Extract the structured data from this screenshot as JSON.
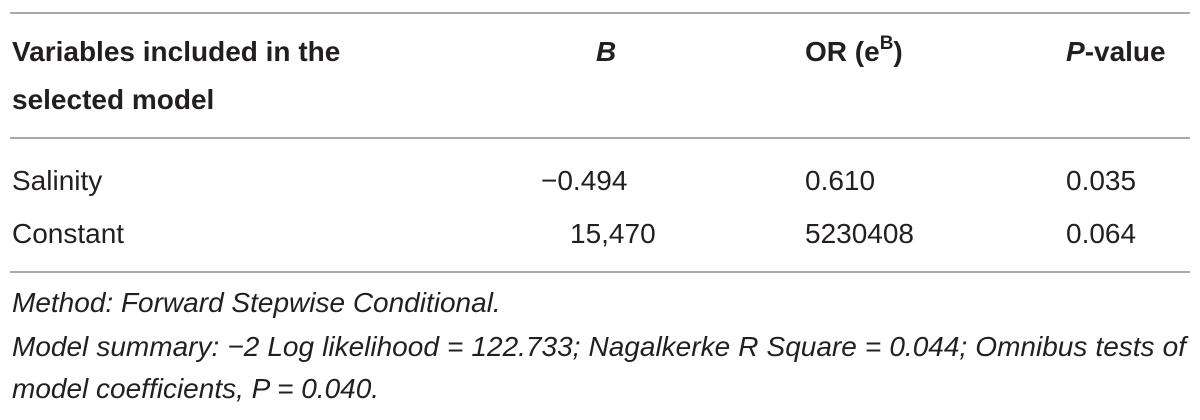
{
  "table": {
    "header": [
      "Variables included in the selected model",
      "B",
      [
        "OR (e",
        "B",
        ")"
      ],
      [
        "P",
        "-value"
      ]
    ],
    "rows": [
      [
        "Salinity",
        "−0.494",
        "0.610",
        "0.035"
      ],
      [
        "Constant",
        "15,470",
        "5230408",
        "0.064"
      ]
    ]
  },
  "footnotes": [
    "Method: Forward Stepwise Conditional.",
    "Model summary: −2 Log likelihood = 122.733; Nagalkerke R Square = 0.044; Omnibus tests of model coefficients, P = 0.040."
  ]
}
